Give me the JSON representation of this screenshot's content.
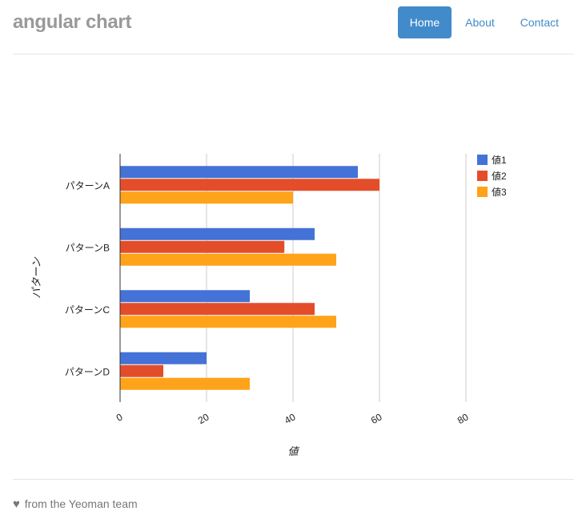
{
  "app": {
    "title": "angular chart"
  },
  "nav": {
    "items": [
      {
        "label": "Home",
        "active": true
      },
      {
        "label": "About",
        "active": false
      },
      {
        "label": "Contact",
        "active": false
      }
    ]
  },
  "footer": {
    "icon": "heart-icon",
    "text": "from the Yeoman team"
  },
  "chart_data": {
    "type": "bar",
    "orientation": "horizontal",
    "categories": [
      "パターンA",
      "パターンB",
      "パターンC",
      "パターンD"
    ],
    "series": [
      {
        "name": "値1",
        "color": "#4472d6",
        "values": [
          55,
          45,
          30,
          20
        ]
      },
      {
        "name": "値2",
        "color": "#e44d2a",
        "values": [
          60,
          38,
          45,
          10
        ]
      },
      {
        "name": "値3",
        "color": "#ffa31a",
        "values": [
          40,
          50,
          50,
          30
        ]
      }
    ],
    "xlabel": "値",
    "ylabel": "パターン",
    "xlim": [
      0,
      80
    ],
    "xticks": [
      0,
      20,
      40,
      60,
      80
    ],
    "grid": true,
    "legend_position": "right"
  },
  "colors": {
    "accent": "#428bca",
    "brand": "#999999"
  }
}
